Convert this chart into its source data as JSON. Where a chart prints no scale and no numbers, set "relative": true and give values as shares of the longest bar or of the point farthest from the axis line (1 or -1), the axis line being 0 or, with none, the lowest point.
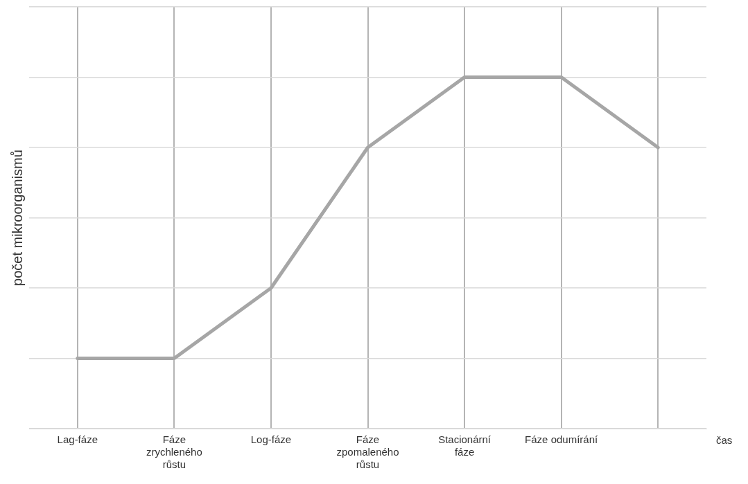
{
  "chart_data": {
    "type": "line",
    "relative": true,
    "categories": [
      "Lag-fáze",
      "Fáze zrychleného růstu",
      "Log-fáze",
      "Fáze zpomaleného růstu",
      "Stacionární fáze",
      "Fáze odumírání",
      null
    ],
    "series": [
      {
        "color": "#a6a6a6",
        "values": [
          0.2,
          0.2,
          0.4,
          0.8,
          1,
          1,
          0.8
        ]
      }
    ],
    "xlabel": "čas",
    "ylabel": "počet mikroorganismů",
    "grid": true,
    "marker": "none",
    "line_style": "solid"
  }
}
